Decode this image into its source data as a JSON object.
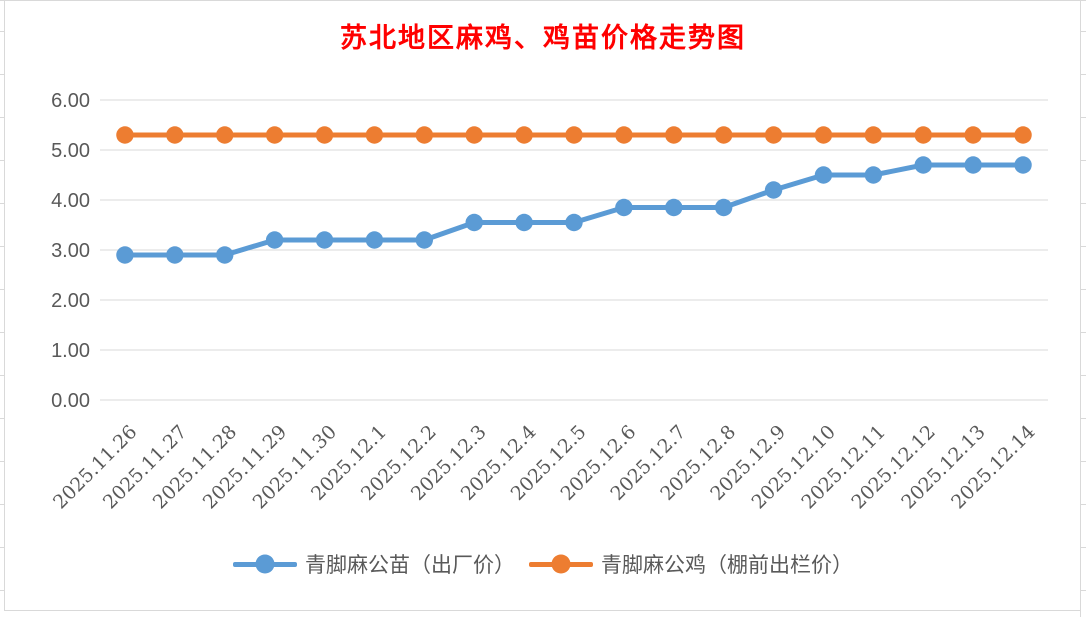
{
  "chart_data": {
    "type": "line",
    "title": "苏北地区麻鸡、鸡苗价格走势图",
    "categories": [
      "2025.11.26",
      "2025.11.27",
      "2025.11.28",
      "2025.11.29",
      "2025.11.30",
      "2025.12.1",
      "2025.12.2",
      "2025.12.3",
      "2025.12.4",
      "2025.12.5",
      "2025.12.6",
      "2025.12.7",
      "2025.12.8",
      "2025.12.9",
      "2025.12.10",
      "2025.12.11",
      "2025.12.12",
      "2025.12.13",
      "2025.12.14"
    ],
    "series": [
      {
        "name": "青脚麻公苗（出厂价）",
        "color": "#5B9BD5",
        "values": [
          2.9,
          2.9,
          2.9,
          3.2,
          3.2,
          3.2,
          3.2,
          3.55,
          3.55,
          3.55,
          3.85,
          3.85,
          3.85,
          4.2,
          4.5,
          4.5,
          4.7,
          4.7,
          4.7
        ]
      },
      {
        "name": "青脚麻公鸡（棚前出栏价）",
        "color": "#ED7D31",
        "values": [
          5.3,
          5.3,
          5.3,
          5.3,
          5.3,
          5.3,
          5.3,
          5.3,
          5.3,
          5.3,
          5.3,
          5.3,
          5.3,
          5.3,
          5.3,
          5.3,
          5.3,
          5.3,
          5.3
        ]
      }
    ],
    "xlabel": "",
    "ylabel": "",
    "ylim": [
      0,
      6
    ],
    "ytick_step": 1,
    "ytick_decimals": 2,
    "ytick_labels": [
      "0.00",
      "1.00",
      "2.00",
      "3.00",
      "4.00",
      "5.00",
      "6.00"
    ],
    "grid": true,
    "legend_position": "bottom",
    "x_label_rotation_deg": 45
  },
  "colors": {
    "title": "#FF0000",
    "axis_text": "#595959",
    "gridline": "#D9D9D9",
    "sheet_line": "#D9D9D9",
    "background": "#FFFFFF"
  }
}
